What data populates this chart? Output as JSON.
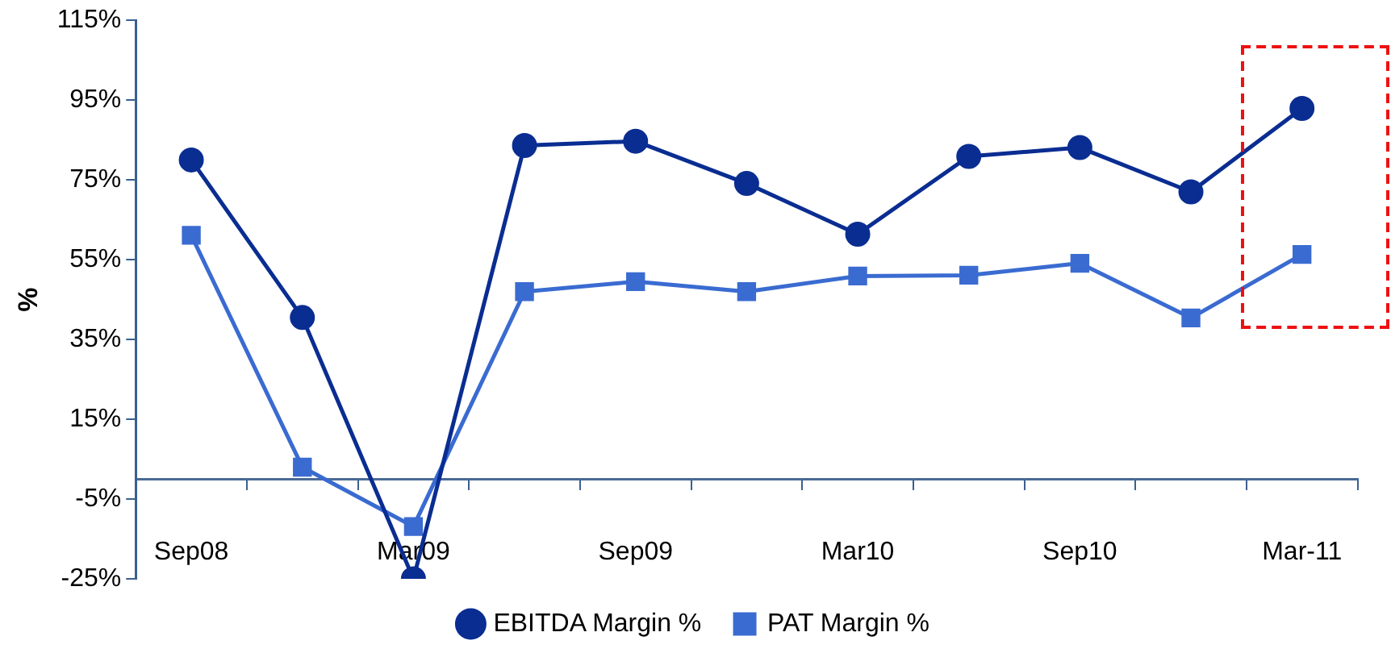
{
  "chart_data": {
    "type": "line",
    "ylabel": "%",
    "categories": [
      "Sep08",
      null,
      "Mar09",
      null,
      "Sep09",
      null,
      "Mar10",
      null,
      "Sep10",
      null,
      "Mar-11"
    ],
    "series": [
      {
        "name": "EBITDA Margin %",
        "color": "#0a2d91",
        "marker": "circle",
        "values": [
          80,
          40.5,
          -25,
          83.6,
          84.7,
          74.1,
          61.4,
          80.9,
          83.1,
          72,
          92.9
        ]
      },
      {
        "name": "PAT Margin %",
        "color": "#3a6bd1",
        "marker": "square",
        "values": [
          61.1,
          3,
          -11.9,
          47,
          49.5,
          47,
          50.9,
          51.1,
          54.1,
          40.4,
          56.3
        ]
      }
    ],
    "ylim": [
      -25,
      115
    ],
    "yticks": [
      {
        "value": -25,
        "label": "-25%"
      },
      {
        "value": -5,
        "label": "-5%"
      },
      {
        "value": 15,
        "label": "15%"
      },
      {
        "value": 35,
        "label": "35%"
      },
      {
        "value": 55,
        "label": "55%"
      },
      {
        "value": 75,
        "label": "75%"
      },
      {
        "value": 95,
        "label": "95%"
      },
      {
        "value": 115,
        "label": "115%"
      }
    ],
    "grid": false,
    "legend": "bottom",
    "line_style": "solid"
  }
}
